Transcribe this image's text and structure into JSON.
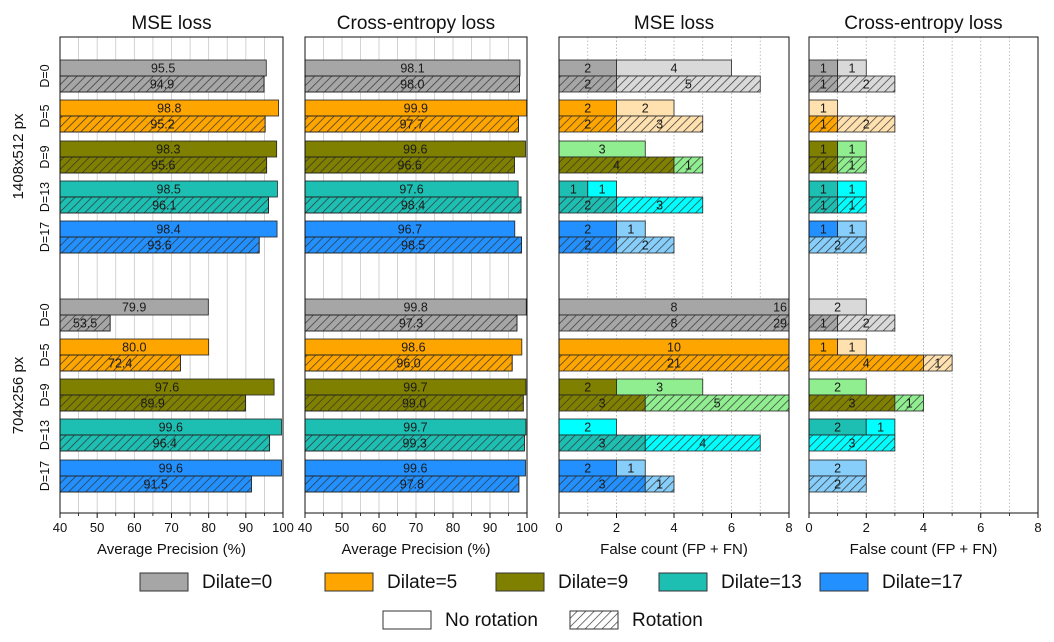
{
  "chart_data": {
    "type": "bar",
    "panel_titles": [
      "MSE loss",
      "Cross-entropy loss",
      "MSE loss",
      "Cross-entropy loss"
    ],
    "xlabels": [
      "Average Precision (%)",
      "Average Precision (%)",
      "False count (FP + FN)",
      "False count (FP + FN)"
    ],
    "ap_xlim": [
      40,
      100
    ],
    "ap_ticks": [
      "40",
      "50",
      "60",
      "70",
      "80",
      "90",
      "100"
    ],
    "fc_xlim": [
      0,
      8
    ],
    "fc_ticks": [
      "0",
      "2",
      "4",
      "6",
      "8"
    ],
    "groups": [
      "1408x512 px",
      "704x256 px"
    ],
    "rows": [
      "D=0",
      "D=5",
      "D=9",
      "D=13",
      "D=17"
    ],
    "dilate_colors": [
      "#a6a6a6",
      "#ffa500",
      "#808000",
      "#1ebfb3",
      "#2291ff"
    ],
    "fp_colors": [
      "#d9d9d9",
      "#ffe1b0",
      "#90ee90",
      "#00ffff",
      "#87cefa"
    ],
    "ap": {
      "mse": [
        [
          [
            95.5,
            94.9
          ],
          [
            98.8,
            95.2
          ],
          [
            98.3,
            95.6
          ],
          [
            98.5,
            96.1
          ],
          [
            98.4,
            93.6
          ]
        ],
        [
          [
            79.9,
            53.5
          ],
          [
            80.0,
            72.4
          ],
          [
            97.6,
            89.9
          ],
          [
            99.6,
            96.4
          ],
          [
            99.6,
            91.5
          ]
        ]
      ],
      "ce": [
        [
          [
            98.1,
            98.0
          ],
          [
            99.9,
            97.7
          ],
          [
            99.6,
            96.6
          ],
          [
            97.6,
            98.4
          ],
          [
            96.7,
            98.5
          ]
        ],
        [
          [
            99.8,
            97.3
          ],
          [
            98.6,
            96.0
          ],
          [
            99.7,
            99.0
          ],
          [
            99.7,
            99.3
          ],
          [
            99.6,
            97.8
          ]
        ]
      ]
    },
    "fc": {
      "mse": [
        [
          [
            [
              2,
              4
            ],
            [
              2,
              5
            ]
          ],
          [
            [
              2,
              2
            ],
            [
              2,
              3
            ]
          ],
          [
            [
              0,
              3
            ],
            [
              4,
              1
            ]
          ],
          [
            [
              1,
              1
            ],
            [
              2,
              3
            ]
          ],
          [
            [
              2,
              1
            ],
            [
              2,
              2
            ]
          ]
        ],
        [
          [
            [
              8,
              16
            ],
            [
              8,
              29
            ]
          ],
          [
            [
              10,
              0
            ],
            [
              21,
              0
            ]
          ],
          [
            [
              2,
              3
            ],
            [
              3,
              5
            ]
          ],
          [
            [
              0,
              2
            ],
            [
              3,
              4
            ]
          ],
          [
            [
              2,
              1
            ],
            [
              3,
              1
            ]
          ]
        ]
      ],
      "ce": [
        [
          [
            [
              1,
              1
            ],
            [
              1,
              2
            ]
          ],
          [
            [
              0,
              1
            ],
            [
              1,
              2
            ]
          ],
          [
            [
              1,
              1
            ],
            [
              1,
              1
            ]
          ],
          [
            [
              1,
              1
            ],
            [
              1,
              1
            ]
          ],
          [
            [
              1,
              1
            ],
            [
              0,
              2
            ]
          ]
        ],
        [
          [
            [
              0,
              2
            ],
            [
              1,
              2
            ]
          ],
          [
            [
              1,
              1
            ],
            [
              4,
              1
            ]
          ],
          [
            [
              0,
              2
            ],
            [
              3,
              1
            ]
          ],
          [
            [
              2,
              1
            ],
            [
              0,
              3
            ]
          ],
          [
            [
              0,
              2
            ],
            [
              0,
              2
            ]
          ]
        ]
      ]
    },
    "legend_dilate": [
      "Dilate=0",
      "Dilate=5",
      "Dilate=9",
      "Dilate=13",
      "Dilate=17"
    ],
    "legend_rotation": [
      "No rotation",
      "Rotation"
    ]
  }
}
